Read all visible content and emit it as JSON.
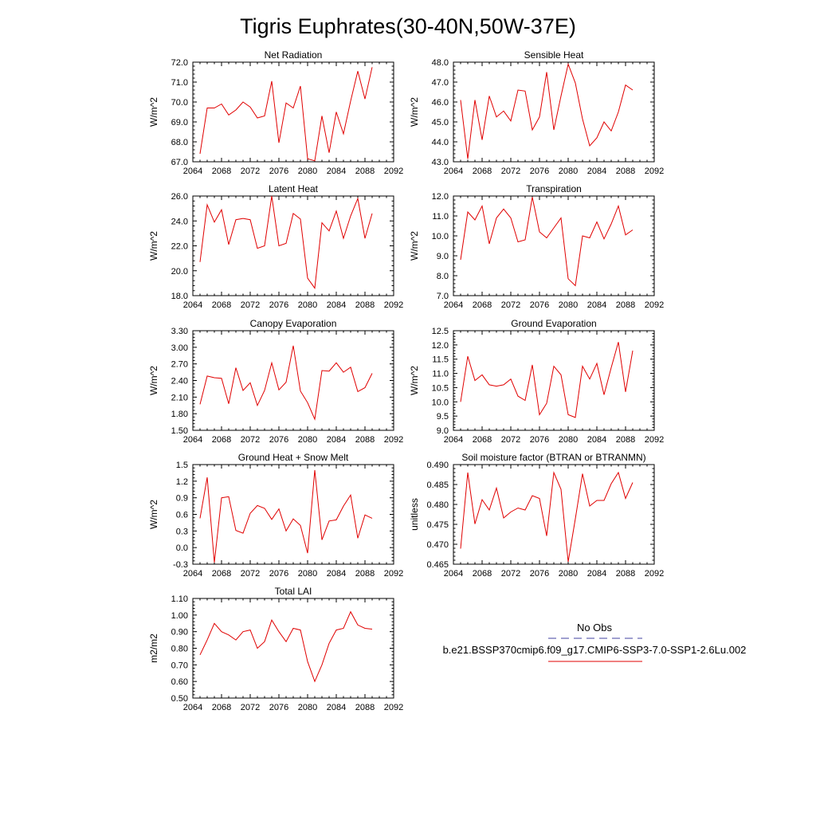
{
  "title": "Tigris Euphrates(30-40N,50W-37E)",
  "legend": {
    "entries": [
      {
        "label": "No Obs",
        "color": "#4040a0",
        "dash": "dashed"
      },
      {
        "label": "b.e21.BSSP370cmip6.f09_g17.CMIP6-SSP3-7.0-SSP1-2.6Lu.002",
        "color": "#e00000",
        "dash": "solid"
      }
    ]
  },
  "chart_data": [
    {
      "type": "line",
      "title": "Net Radiation",
      "ylabel": "W/m^2",
      "xlim": [
        2064,
        2092
      ],
      "ylim": [
        67.0,
        72.0
      ],
      "xticks": [
        2064,
        2068,
        2072,
        2076,
        2080,
        2084,
        2088,
        2092
      ],
      "yticks": [
        "67.0",
        "68.0",
        "69.0",
        "70.0",
        "71.0",
        "72.0"
      ],
      "x": [
        2065,
        2066,
        2067,
        2068,
        2069,
        2070,
        2071,
        2072,
        2073,
        2074,
        2075,
        2076,
        2077,
        2078,
        2079,
        2080,
        2081,
        2082,
        2083,
        2084,
        2085,
        2086,
        2087,
        2088,
        2089
      ],
      "series": [
        {
          "color": "#e00000",
          "values": [
            67.4,
            69.7,
            69.7,
            69.9,
            69.35,
            69.6,
            70.0,
            69.75,
            69.2,
            69.3,
            71.05,
            67.95,
            69.95,
            69.7,
            70.8,
            67.15,
            67.05,
            69.3,
            67.45,
            69.5,
            68.4,
            70.05,
            71.55,
            70.15,
            71.75
          ]
        }
      ]
    },
    {
      "type": "line",
      "title": "Sensible Heat",
      "ylabel": "W/m^2",
      "xlim": [
        2064,
        2092
      ],
      "ylim": [
        43.0,
        48.0
      ],
      "xticks": [
        2064,
        2068,
        2072,
        2076,
        2080,
        2084,
        2088,
        2092
      ],
      "yticks": [
        "43.0",
        "44.0",
        "45.0",
        "46.0",
        "47.0",
        "48.0"
      ],
      "x": [
        2065,
        2066,
        2067,
        2068,
        2069,
        2070,
        2071,
        2072,
        2073,
        2074,
        2075,
        2076,
        2077,
        2078,
        2079,
        2080,
        2081,
        2082,
        2083,
        2084,
        2085,
        2086,
        2087,
        2088,
        2089
      ],
      "series": [
        {
          "color": "#e00000",
          "values": [
            46.1,
            43.15,
            46.1,
            44.1,
            46.3,
            45.25,
            45.55,
            45.05,
            46.6,
            46.55,
            44.6,
            45.25,
            47.5,
            44.6,
            46.3,
            47.9,
            46.95,
            45.15,
            43.8,
            44.2,
            45.0,
            44.55,
            45.5,
            46.85,
            46.6
          ]
        }
      ]
    },
    {
      "type": "line",
      "title": "Latent Heat",
      "ylabel": "W/m^2",
      "xlim": [
        2064,
        2092
      ],
      "ylim": [
        18.0,
        26.0
      ],
      "xticks": [
        2064,
        2068,
        2072,
        2076,
        2080,
        2084,
        2088,
        2092
      ],
      "yticks": [
        "18.0",
        "20.0",
        "22.0",
        "24.0",
        "26.0"
      ],
      "x": [
        2065,
        2066,
        2067,
        2068,
        2069,
        2070,
        2071,
        2072,
        2073,
        2074,
        2075,
        2076,
        2077,
        2078,
        2079,
        2080,
        2081,
        2082,
        2083,
        2084,
        2085,
        2086,
        2087,
        2088,
        2089
      ],
      "series": [
        {
          "color": "#e00000",
          "values": [
            20.7,
            25.3,
            23.9,
            24.9,
            22.1,
            24.1,
            24.2,
            24.1,
            21.8,
            22.0,
            26.0,
            22.0,
            22.2,
            24.6,
            24.15,
            19.4,
            18.6,
            23.85,
            23.2,
            24.8,
            22.6,
            24.4,
            25.8,
            22.6,
            24.6
          ]
        }
      ]
    },
    {
      "type": "line",
      "title": "Transpiration",
      "ylabel": "W/m^2",
      "xlim": [
        2064,
        2092
      ],
      "ylim": [
        7.0,
        12.0
      ],
      "xticks": [
        2064,
        2068,
        2072,
        2076,
        2080,
        2084,
        2088,
        2092
      ],
      "yticks": [
        "7.0",
        "8.0",
        "9.0",
        "10.0",
        "11.0",
        "12.0"
      ],
      "x": [
        2065,
        2066,
        2067,
        2068,
        2069,
        2070,
        2071,
        2072,
        2073,
        2074,
        2075,
        2076,
        2077,
        2078,
        2079,
        2080,
        2081,
        2082,
        2083,
        2084,
        2085,
        2086,
        2087,
        2088,
        2089
      ],
      "series": [
        {
          "color": "#e00000",
          "values": [
            8.8,
            11.2,
            10.8,
            11.5,
            9.6,
            10.9,
            11.35,
            10.9,
            9.7,
            9.8,
            11.95,
            10.2,
            9.9,
            10.4,
            10.9,
            7.85,
            7.5,
            10.0,
            9.9,
            10.7,
            9.85,
            10.6,
            11.5,
            10.05,
            10.3
          ]
        }
      ]
    },
    {
      "type": "line",
      "title": "Canopy Evaporation",
      "ylabel": "W/m^2",
      "xlim": [
        2064,
        2092
      ],
      "ylim": [
        1.5,
        3.3
      ],
      "xticks": [
        2064,
        2068,
        2072,
        2076,
        2080,
        2084,
        2088,
        2092
      ],
      "yticks": [
        "1.50",
        "1.80",
        "2.10",
        "2.40",
        "2.70",
        "3.00",
        "3.30"
      ],
      "x": [
        2065,
        2066,
        2067,
        2068,
        2069,
        2070,
        2071,
        2072,
        2073,
        2074,
        2075,
        2076,
        2077,
        2078,
        2079,
        2080,
        2081,
        2082,
        2083,
        2084,
        2085,
        2086,
        2087,
        2088,
        2089
      ],
      "series": [
        {
          "color": "#e00000",
          "values": [
            1.97,
            2.48,
            2.45,
            2.44,
            1.98,
            2.63,
            2.22,
            2.36,
            1.95,
            2.22,
            2.72,
            2.23,
            2.37,
            3.03,
            2.21,
            2.0,
            1.7,
            2.58,
            2.57,
            2.72,
            2.55,
            2.64,
            2.2,
            2.27,
            2.53
          ]
        }
      ]
    },
    {
      "type": "line",
      "title": "Ground Evaporation",
      "ylabel": "W/m^2",
      "xlim": [
        2064,
        2092
      ],
      "ylim": [
        9.0,
        12.5
      ],
      "xticks": [
        2064,
        2068,
        2072,
        2076,
        2080,
        2084,
        2088,
        2092
      ],
      "yticks": [
        "9.0",
        "9.5",
        "10.0",
        "10.5",
        "11.0",
        "11.5",
        "12.0",
        "12.5"
      ],
      "x": [
        2065,
        2066,
        2067,
        2068,
        2069,
        2070,
        2071,
        2072,
        2073,
        2074,
        2075,
        2076,
        2077,
        2078,
        2079,
        2080,
        2081,
        2082,
        2083,
        2084,
        2085,
        2086,
        2087,
        2088,
        2089
      ],
      "series": [
        {
          "color": "#e00000",
          "values": [
            10.0,
            11.6,
            10.75,
            10.95,
            10.6,
            10.55,
            10.6,
            10.8,
            10.2,
            10.05,
            11.3,
            9.55,
            9.95,
            11.25,
            10.95,
            9.55,
            9.45,
            11.25,
            10.8,
            11.35,
            10.25,
            11.2,
            12.1,
            10.35,
            11.8
          ]
        }
      ]
    },
    {
      "type": "line",
      "title": "Ground Heat + Snow Melt",
      "ylabel": "W/m^2",
      "xlim": [
        2064,
        2092
      ],
      "ylim": [
        -0.3,
        1.5
      ],
      "xticks": [
        2064,
        2068,
        2072,
        2076,
        2080,
        2084,
        2088,
        2092
      ],
      "yticks": [
        "-0.3",
        "0.0",
        "0.3",
        "0.6",
        "0.9",
        "1.2",
        "1.5"
      ],
      "x": [
        2065,
        2066,
        2067,
        2068,
        2069,
        2070,
        2071,
        2072,
        2073,
        2074,
        2075,
        2076,
        2077,
        2078,
        2079,
        2080,
        2081,
        2082,
        2083,
        2084,
        2085,
        2086,
        2087,
        2088,
        2089
      ],
      "series": [
        {
          "color": "#e00000",
          "values": [
            0.53,
            1.27,
            -0.27,
            0.9,
            0.92,
            0.31,
            0.26,
            0.62,
            0.76,
            0.71,
            0.51,
            0.7,
            0.3,
            0.52,
            0.4,
            -0.1,
            1.4,
            0.14,
            0.48,
            0.5,
            0.75,
            0.95,
            0.17,
            0.59,
            0.53
          ]
        }
      ]
    },
    {
      "type": "line",
      "title": "Soil moisture factor (BTRAN or BTRANMN)",
      "ylabel": "unitless",
      "xlim": [
        2064,
        2092
      ],
      "ylim": [
        0.465,
        0.49
      ],
      "xticks": [
        2064,
        2068,
        2072,
        2076,
        2080,
        2084,
        2088,
        2092
      ],
      "yticks": [
        "0.465",
        "0.470",
        "0.475",
        "0.480",
        "0.485",
        "0.490"
      ],
      "x": [
        2065,
        2066,
        2067,
        2068,
        2069,
        2070,
        2071,
        2072,
        2073,
        2074,
        2075,
        2076,
        2077,
        2078,
        2079,
        2080,
        2081,
        2082,
        2083,
        2084,
        2085,
        2086,
        2087,
        2088,
        2089
      ],
      "series": [
        {
          "color": "#e00000",
          "values": [
            0.4689,
            0.488,
            0.4751,
            0.4812,
            0.4786,
            0.4841,
            0.4766,
            0.4781,
            0.4791,
            0.4786,
            0.4822,
            0.4815,
            0.4721,
            0.488,
            0.4838,
            0.4656,
            0.4764,
            0.4877,
            0.4796,
            0.481,
            0.481,
            0.4852,
            0.488,
            0.4815,
            0.4855
          ]
        }
      ]
    },
    {
      "type": "line",
      "title": "Total LAI",
      "ylabel": "m2/m2",
      "xlim": [
        2064,
        2092
      ],
      "ylim": [
        0.5,
        1.1
      ],
      "xticks": [
        2064,
        2068,
        2072,
        2076,
        2080,
        2084,
        2088,
        2092
      ],
      "yticks": [
        "0.50",
        "0.60",
        "0.70",
        "0.80",
        "0.90",
        "1.00",
        "1.10"
      ],
      "x": [
        2065,
        2066,
        2067,
        2068,
        2069,
        2070,
        2071,
        2072,
        2073,
        2074,
        2075,
        2076,
        2077,
        2078,
        2079,
        2080,
        2081,
        2082,
        2083,
        2084,
        2085,
        2086,
        2087,
        2088,
        2089
      ],
      "series": [
        {
          "color": "#e00000",
          "values": [
            0.76,
            0.85,
            0.95,
            0.9,
            0.88,
            0.85,
            0.9,
            0.91,
            0.8,
            0.84,
            0.97,
            0.9,
            0.84,
            0.92,
            0.91,
            0.72,
            0.6,
            0.7,
            0.83,
            0.91,
            0.92,
            1.02,
            0.94,
            0.92,
            0.915
          ]
        }
      ]
    }
  ]
}
